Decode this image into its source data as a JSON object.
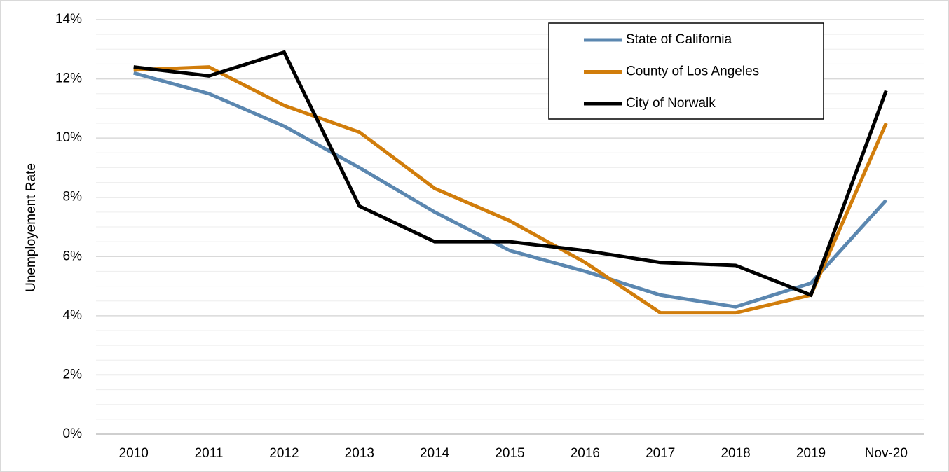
{
  "chart_data": {
    "type": "line",
    "y_label": "Unemployement Rate",
    "categories": [
      "2010",
      "2011",
      "2012",
      "2013",
      "2014",
      "2015",
      "2016",
      "2017",
      "2018",
      "2019",
      "Nov-20"
    ],
    "series": [
      {
        "name": "State of California",
        "color": "#5b87b0",
        "values": [
          12.2,
          11.5,
          10.4,
          9.0,
          7.5,
          6.2,
          5.5,
          4.7,
          4.3,
          5.1,
          7.9
        ]
      },
      {
        "name": "County of Los Angeles",
        "color": "#d17d0b",
        "values": [
          12.3,
          12.4,
          11.1,
          10.2,
          8.3,
          7.2,
          5.8,
          4.1,
          4.1,
          4.7,
          10.5
        ]
      },
      {
        "name": "City of Norwalk",
        "color": "#000000",
        "values": [
          12.4,
          12.1,
          12.9,
          7.7,
          6.5,
          6.5,
          6.2,
          5.8,
          5.7,
          4.7,
          11.6
        ]
      }
    ],
    "ylim": [
      0,
      14
    ],
    "yticks": [
      {
        "value": 0,
        "label": "0%"
      },
      {
        "value": 2,
        "label": "2%"
      },
      {
        "value": 4,
        "label": "4%"
      },
      {
        "value": 6,
        "label": "6%"
      },
      {
        "value": 8,
        "label": "8%"
      },
      {
        "value": 10,
        "label": "10%"
      },
      {
        "value": 12,
        "label": "12%"
      },
      {
        "value": 14,
        "label": "14%"
      }
    ],
    "y_minor_ticks": [
      0.5,
      1,
      1.5,
      2.5,
      3,
      3.5,
      4.5,
      5,
      5.5,
      6.5,
      7,
      7.5,
      8.5,
      9,
      9.5,
      10.5,
      11,
      11.5,
      12.5,
      13,
      13.5
    ],
    "grid": true,
    "legend": "upper right"
  }
}
